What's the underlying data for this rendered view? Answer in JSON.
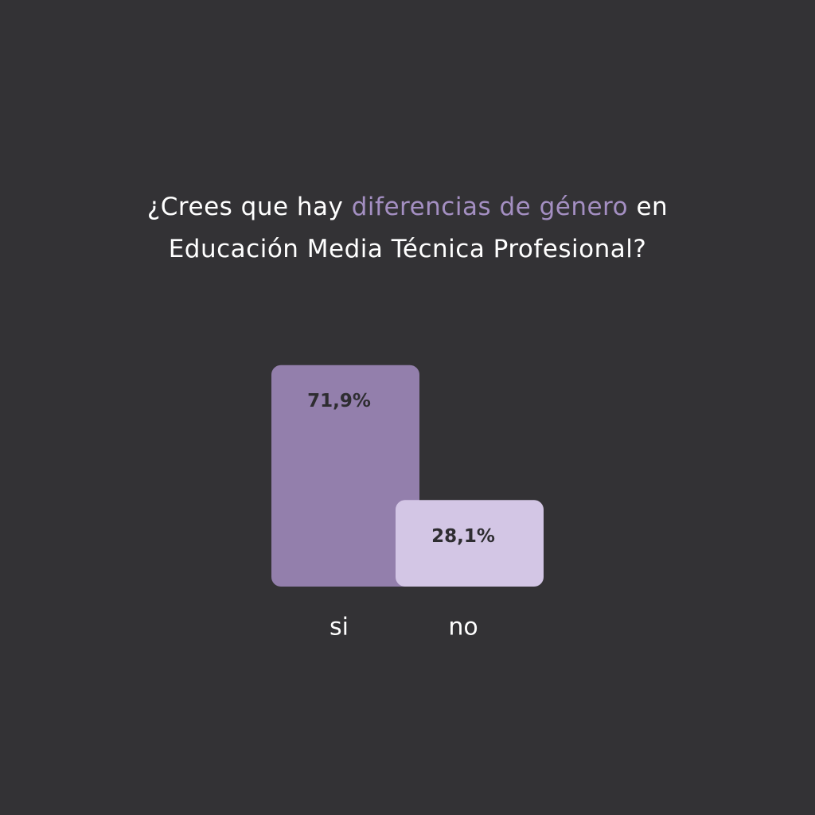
{
  "chart_data": {
    "type": "bar",
    "title": [
      {
        "text": "¿Crees que hay",
        "color": "#ffffff"
      },
      {
        "text": "diferencias de género",
        "color": "#a48fc2"
      },
      {
        "text": "en",
        "color": "#ffffff"
      },
      {
        "text": "Educación Media Técnica Profesional?",
        "color": "#ffffff"
      }
    ],
    "categories": [
      "si",
      "no"
    ],
    "values": [
      71.9,
      28.1
    ],
    "value_labels": [
      "71,9%",
      "28,1%"
    ],
    "colors": [
      "#937fac",
      "#d3c6e5"
    ]
  }
}
